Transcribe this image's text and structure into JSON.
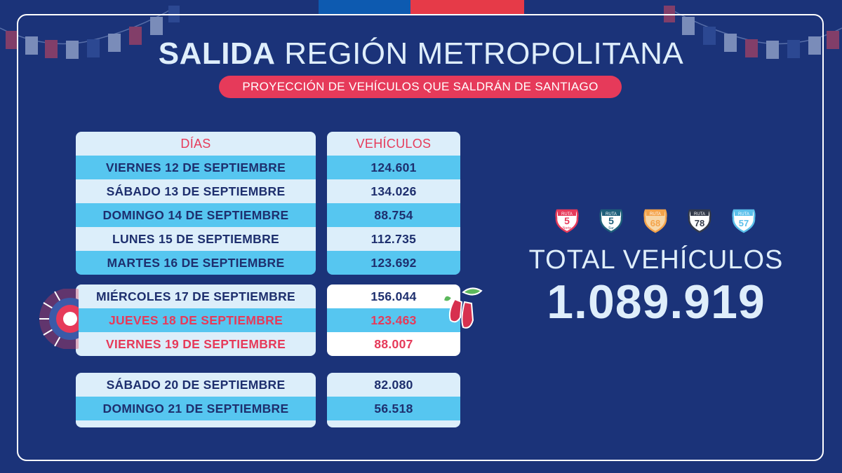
{
  "title": {
    "bold": "SALIDA",
    "rest": "REGIÓN METROPOLITANA"
  },
  "subtitle": "PROYECCIÓN DE VEHÍCULOS QUE SALDRÁN DE SANTIAGO",
  "table": {
    "header_days": "DÍAS",
    "header_vehicles": "VEHÍCULOS",
    "group1": [
      {
        "day": "VIERNES 12 DE SEPTIEMBRE",
        "vehicles": "124.601"
      },
      {
        "day": "SÁBADO 13 DE SEPTIEMBRE",
        "vehicles": "134.026"
      },
      {
        "day": "DOMINGO 14 DE SEPTIEMBRE",
        "vehicles": "88.754"
      },
      {
        "day": "LUNES 15 DE SEPTIEMBRE",
        "vehicles": "112.735"
      },
      {
        "day": "MARTES 16 DE SEPTIEMBRE",
        "vehicles": "123.692"
      }
    ],
    "group2": [
      {
        "day": "MIÉRCOLES 17 DE SEPTIEMBRE",
        "vehicles": "156.044"
      },
      {
        "day": "JUEVES 18 DE SEPTIEMBRE",
        "vehicles": "123.463",
        "highlight": true
      },
      {
        "day": "VIERNES 19 DE SEPTIEMBRE",
        "vehicles": "88.007",
        "highlight": true
      }
    ],
    "group3": [
      {
        "day": "SÁBADO 20 DE SEPTIEMBRE",
        "vehicles": "82.080"
      },
      {
        "day": "DOMINGO 21 DE SEPTIEMBRE",
        "vehicles": "56.518"
      }
    ]
  },
  "routes": [
    {
      "top": "RUTA",
      "num": "5",
      "sub": "Norte",
      "color": "#e63a5a",
      "fill": "#ffffff"
    },
    {
      "top": "RUTA",
      "num": "5",
      "sub": "Sur",
      "color": "#1e5f7a",
      "fill": "#ffffff"
    },
    {
      "top": "RUTA",
      "num": "68",
      "sub": "",
      "color": "#f4a34a",
      "fill": "#f7d7a8"
    },
    {
      "top": "RUTA",
      "num": "78",
      "sub": "",
      "color": "#333a4a",
      "fill": "#ffffff"
    },
    {
      "top": "RUTA",
      "num": "57",
      "sub": "",
      "color": "#5bc0eb",
      "fill": "#ffffff"
    }
  ],
  "total": {
    "label": "TOTAL VEHÍCULOS",
    "value": "1.089.919"
  },
  "colors": {
    "background": "#1b3379",
    "light_row": "#dceefa",
    "blue_row": "#56c6f0",
    "accent_red": "#e63a5a",
    "text_dark": "#1e2f6e",
    "flag_blue": "#0d5ab0",
    "flag_red": "#e63a48"
  }
}
